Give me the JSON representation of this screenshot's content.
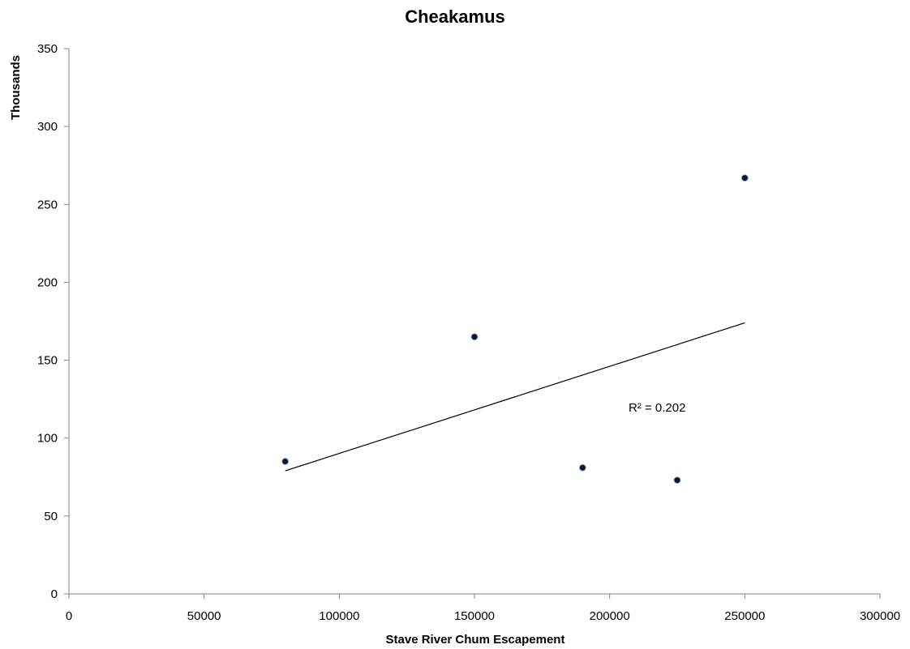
{
  "chart_data": {
    "type": "scatter",
    "title": "Cheakamus",
    "xlabel": "Stave River Chum Escapement",
    "ylabel": "Thousands",
    "xlim": [
      0,
      300000
    ],
    "ylim": [
      0,
      350
    ],
    "x_ticks": [
      0,
      50000,
      100000,
      150000,
      200000,
      250000,
      300000
    ],
    "y_ticks": [
      0,
      50,
      100,
      150,
      200,
      250,
      300,
      350
    ],
    "grid": false,
    "legend": "none",
    "series": [
      {
        "x": [
          80000,
          150000,
          190000,
          225000,
          250000
        ],
        "y": [
          85,
          165,
          81,
          73,
          267
        ],
        "marker_color": "#0a1833",
        "marker_edge_color": "#9db3d6"
      }
    ],
    "trendline": {
      "type": "linear",
      "x": [
        80000,
        250000
      ],
      "y": [
        79,
        174
      ],
      "color": "#000000"
    },
    "annotation": {
      "text": "R² = 0.202",
      "x": 207000,
      "y": 117
    },
    "colors": {
      "axis": "#868686",
      "text": "#000000"
    }
  }
}
